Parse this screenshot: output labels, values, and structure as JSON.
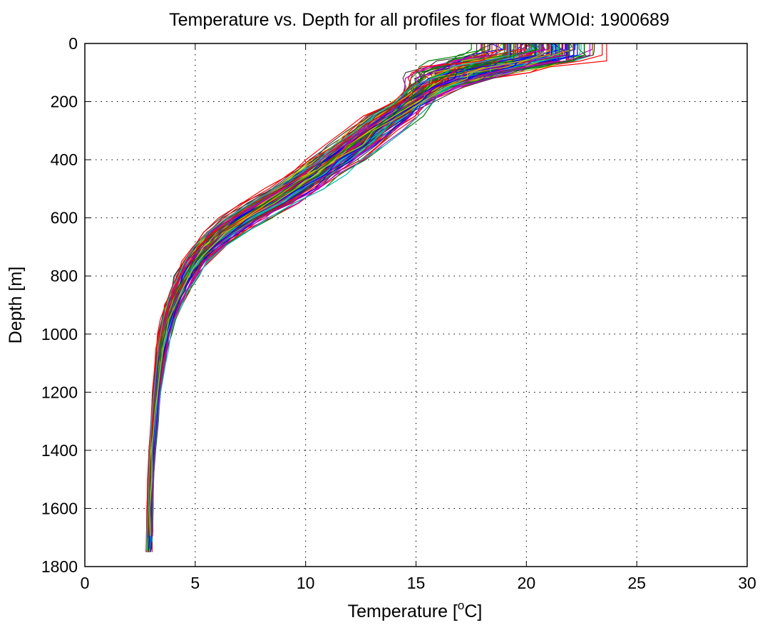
{
  "chart_data": {
    "type": "line",
    "title": "Temperature vs. Depth for all profiles for float WMOId: 1900689",
    "xlabel": "Temperature [",
    "xlabel_sup": "o",
    "xlabel_end": "C]",
    "ylabel": "Depth [m]",
    "xlim": [
      0,
      30
    ],
    "ylim": [
      1800,
      0
    ],
    "y_reversed": true,
    "xticks": [
      0,
      5,
      10,
      15,
      20,
      25,
      30
    ],
    "xtick_labels": [
      "0",
      "5",
      "10",
      "15",
      "20",
      "25",
      "30"
    ],
    "yticks": [
      0,
      200,
      400,
      600,
      800,
      1000,
      1200,
      1400,
      1600,
      1800
    ],
    "ytick_labels": [
      "0",
      "200",
      "400",
      "600",
      "800",
      "1000",
      "1200",
      "1400",
      "1600",
      "1800"
    ],
    "grid": true,
    "legend": "none",
    "series_count": 160,
    "colors": [
      "#0000ff",
      "#008000",
      "#ff0000",
      "#00bfbf",
      "#bf00bf",
      "#bfbf00",
      "#404040"
    ],
    "depth_levels": [
      0,
      20,
      40,
      60,
      80,
      100,
      120,
      150,
      200,
      250,
      300,
      350,
      400,
      450,
      500,
      550,
      600,
      650,
      700,
      750,
      800,
      850,
      900,
      950,
      1000,
      1050,
      1100,
      1200,
      1300,
      1400,
      1500,
      1600,
      1700,
      1750
    ],
    "mean_profile": [
      20.5,
      20.4,
      20.0,
      19.2,
      18.2,
      17.3,
      16.6,
      15.8,
      14.9,
      14.0,
      13.1,
      12.3,
      11.4,
      10.5,
      9.5,
      8.4,
      7.3,
      6.3,
      5.6,
      5.0,
      4.6,
      4.3,
      4.0,
      3.8,
      3.6,
      3.5,
      3.4,
      3.25,
      3.15,
      3.05,
      3.0,
      2.95,
      2.92,
      2.9
    ],
    "spread_profile": [
      2.4,
      2.4,
      2.6,
      2.6,
      2.4,
      2.0,
      1.6,
      1.2,
      1.0,
      0.9,
      0.9,
      0.9,
      0.9,
      0.9,
      0.9,
      0.9,
      0.8,
      0.7,
      0.55,
      0.45,
      0.38,
      0.33,
      0.28,
      0.24,
      0.22,
      0.2,
      0.17,
      0.14,
      0.12,
      0.11,
      0.1,
      0.1,
      0.1,
      0.1
    ],
    "surface_temperature_range": [
      16.8,
      26.2
    ],
    "deep_temperature_range": [
      2.7,
      3.1
    ],
    "max_profile_depth": 1780
  }
}
